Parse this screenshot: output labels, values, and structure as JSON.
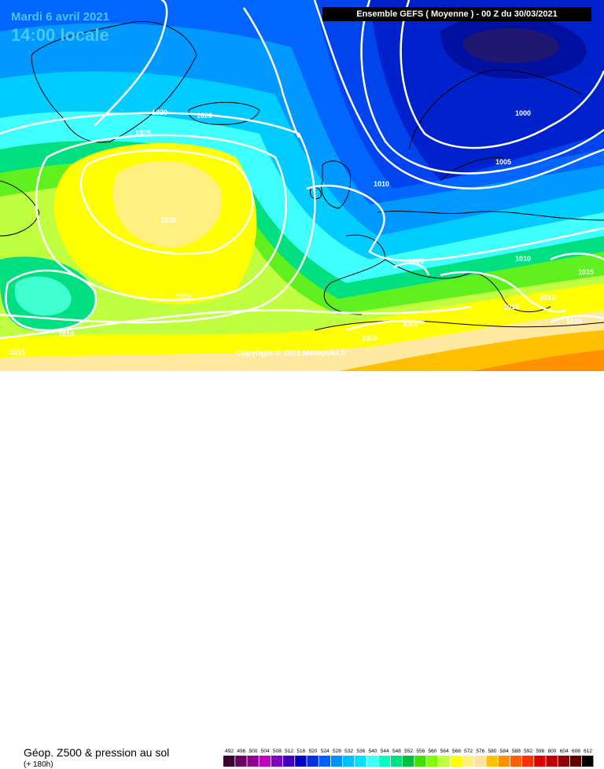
{
  "header": {
    "date": "Mardi 6 avril 2021",
    "time": "14:00 locale",
    "run": "Ensemble GEFS  ( Moyenne )  -  00 Z du 30/03/2021"
  },
  "copyright": "Copyright © 2021 Meteociel.fr",
  "footer": {
    "title": "Géop. Z500 & pression au sol",
    "subtitle": "(+ 180h)"
  },
  "scale": {
    "labels": [
      "492",
      "496",
      "500",
      "504",
      "508",
      "512",
      "516",
      "520",
      "524",
      "528",
      "532",
      "536",
      "540",
      "544",
      "548",
      "552",
      "556",
      "560",
      "564",
      "568",
      "572",
      "576",
      "580",
      "584",
      "588",
      "592",
      "596",
      "600",
      "604",
      "608",
      "612"
    ],
    "colors": [
      "#3a0030",
      "#6a0060",
      "#900090",
      "#c000c0",
      "#8000c0",
      "#4000c0",
      "#0000c0",
      "#0030e0",
      "#0060ff",
      "#0090ff",
      "#00c0ff",
      "#00e0ff",
      "#40ffff",
      "#00ffc0",
      "#00e080",
      "#00c040",
      "#40e000",
      "#80ff00",
      "#c0ff40",
      "#ffff00",
      "#fff080",
      "#ffe0a0",
      "#ffc000",
      "#ff9000",
      "#ff6000",
      "#ff3000",
      "#e00000",
      "#c00000",
      "#900000",
      "#600000",
      "#000000"
    ]
  },
  "isobar_labels": [
    {
      "text": "1020"
    },
    {
      "text": "1020"
    },
    {
      "text": "1025"
    },
    {
      "text": "1030"
    },
    {
      "text": "1015"
    },
    {
      "text": "1010"
    },
    {
      "text": "1015"
    },
    {
      "text": "1010"
    },
    {
      "text": "1000"
    },
    {
      "text": "1005"
    },
    {
      "text": "1005"
    },
    {
      "text": "1010"
    },
    {
      "text": "1010"
    },
    {
      "text": "1010"
    },
    {
      "text": "1015"
    },
    {
      "text": "1005"
    },
    {
      "text": "1005"
    },
    {
      "text": "1015"
    }
  ]
}
